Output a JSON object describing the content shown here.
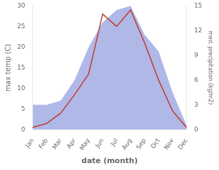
{
  "chart_data": {
    "type": "line",
    "xlabel": "date (month)",
    "ylabel": "max temp (C)",
    "y2label": "med. precipitation (kg/m2)",
    "categories": [
      "Jan",
      "Feb",
      "Mar",
      "Apr",
      "May",
      "Jun",
      "Jul",
      "Aug",
      "Sep",
      "Oct",
      "Nov",
      "Dec"
    ],
    "series": [
      {
        "type": "area",
        "axis": "y2",
        "color": "#b0b8e8",
        "values": [
          3.0,
          3.0,
          3.5,
          6.0,
          10.0,
          13.0,
          14.5,
          15.0,
          11.5,
          9.5,
          4.5,
          0.5
        ]
      },
      {
        "type": "line",
        "color": "#c0392b",
        "values": [
          0.5,
          1.5,
          4.0,
          8.5,
          13.5,
          28.0,
          25.0,
          29.0,
          21.0,
          12.0,
          4.5,
          0.5
        ]
      }
    ],
    "ylim": [
      0,
      30
    ],
    "yticks": [
      0,
      5,
      10,
      15,
      20,
      25,
      30
    ],
    "y2lim": [
      0,
      15
    ],
    "y2ticks": [
      0,
      3,
      6,
      9,
      12,
      15
    ],
    "grid": false
  }
}
